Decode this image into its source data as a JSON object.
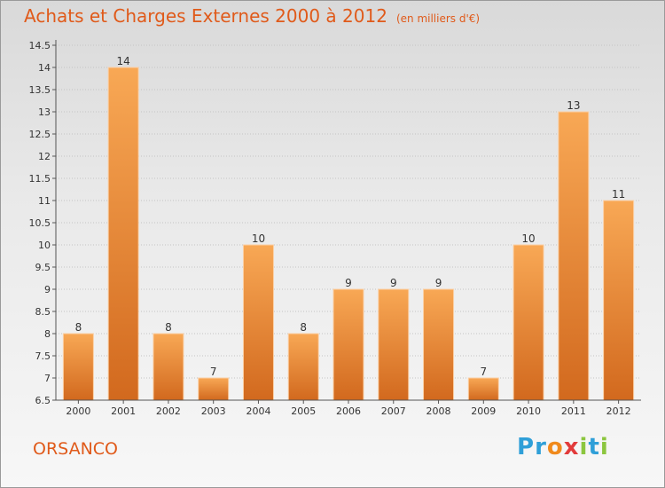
{
  "header": {
    "title": "Achats et Charges Externes 2000 à 2012",
    "unit": "(en milliers d'€)"
  },
  "footer": {
    "town": "ORSANCO",
    "brand_letters": [
      {
        "char": "P",
        "color": "#2f9fd8"
      },
      {
        "char": "r",
        "color": "#2f9fd8"
      },
      {
        "char": "o",
        "color": "#f08a1c"
      },
      {
        "char": "x",
        "color": "#e23b3b"
      },
      {
        "char": "i",
        "color": "#8cc63f"
      },
      {
        "char": "t",
        "color": "#2f9fd8"
      },
      {
        "char": "i",
        "color": "#8cc63f"
      }
    ]
  },
  "colors": {
    "accent": "#e05a1a",
    "bar_light": "#f8a855",
    "bar_dark": "#d2691e"
  },
  "chart_data": {
    "type": "bar",
    "categories": [
      "2000",
      "2001",
      "2002",
      "2003",
      "2004",
      "2005",
      "2006",
      "2007",
      "2008",
      "2009",
      "2010",
      "2011",
      "2012"
    ],
    "values": [
      8,
      14,
      8,
      7,
      10,
      8,
      9,
      9,
      9,
      7,
      10,
      13,
      11
    ],
    "data_labels": [
      "8",
      "14",
      "8",
      "7",
      "10",
      "8",
      "9",
      "9",
      "9",
      "7",
      "10",
      "13",
      "11"
    ],
    "yticks": [
      "6.5",
      "7",
      "7.5",
      "8",
      "8.5",
      "9",
      "9.5",
      "10",
      "10.5",
      "11",
      "11.5",
      "12",
      "12.5",
      "13",
      "13.5",
      "14",
      "14.5"
    ],
    "ylim": [
      6.5,
      14.5
    ],
    "grid": "horizontal",
    "legend": "none"
  }
}
